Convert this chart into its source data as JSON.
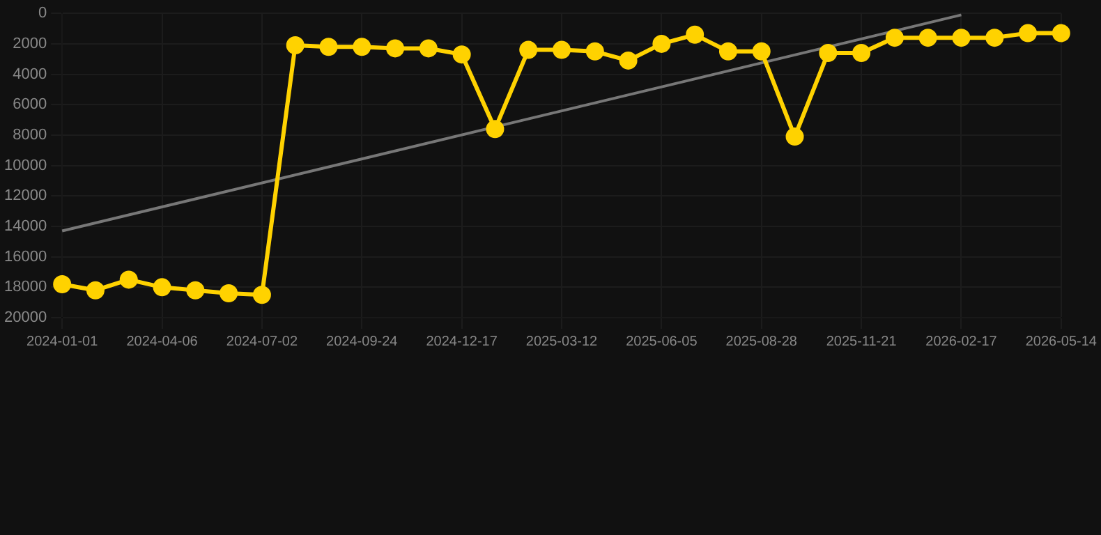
{
  "chart_data": {
    "type": "line",
    "categories": [
      "2024-01-01",
      null,
      null,
      "2024-04-06",
      null,
      null,
      "2024-07-02",
      null,
      null,
      "2024-09-24",
      null,
      null,
      "2024-12-17",
      null,
      null,
      "2025-03-12",
      null,
      null,
      "2025-06-05",
      null,
      null,
      "2025-08-28",
      null,
      null,
      "2025-11-21",
      null,
      null,
      "2026-02-17",
      null,
      null,
      "2026-05-14"
    ],
    "series": [
      {
        "color": "#ffd200",
        "marker": "circle",
        "values": [
          17800,
          18200,
          17500,
          18000,
          18200,
          18400,
          18500,
          2100,
          2200,
          2200,
          2300,
          2300,
          2700,
          7600,
          2400,
          2400,
          2500,
          3100,
          2000,
          1400,
          2500,
          2500,
          8100,
          2600,
          2600,
          1600,
          1600,
          1600,
          1600,
          1300,
          1300
        ]
      },
      {
        "type": "line",
        "color": "#777777",
        "marker": "none",
        "values": [
          14300,
          null,
          null,
          null,
          null,
          null,
          null,
          null,
          null,
          null,
          null,
          null,
          null,
          null,
          null,
          null,
          null,
          null,
          null,
          null,
          null,
          null,
          null,
          null,
          null,
          null,
          null,
          100,
          null,
          null,
          null
        ]
      }
    ],
    "ylim": [
      20000,
      0
    ],
    "yticks": [
      0,
      2000,
      4000,
      6000,
      8000,
      10000,
      12000,
      14000,
      16000,
      18000,
      20000
    ],
    "grid": true
  }
}
